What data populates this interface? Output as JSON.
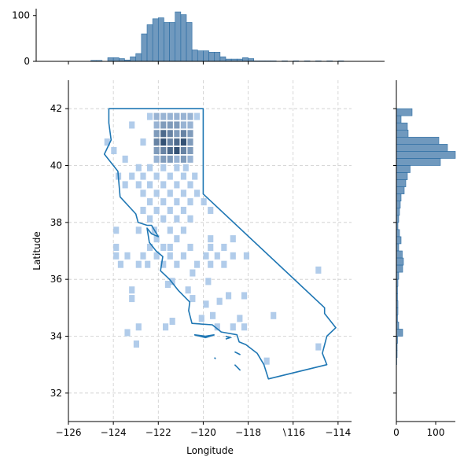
{
  "chart_data": {
    "type": "heatmap",
    "title": "",
    "xlabel": "Longitude",
    "ylabel": "Latitude",
    "xlim": [
      -126,
      -113.4
    ],
    "ylim": [
      31,
      43
    ],
    "x_ticks": [
      -126,
      -124,
      -122,
      -120,
      -118,
      -116,
      -114
    ],
    "y_ticks": [
      32,
      34,
      36,
      38,
      40,
      42
    ],
    "x_tick_labels": [
      "−126",
      "−124",
      "−122",
      "−120",
      "−118",
      "∖116",
      "−114"
    ],
    "y_tick_labels": [
      "32",
      "34",
      "36",
      "38",
      "40",
      "42"
    ],
    "grid": true,
    "colors": {
      "hist": "#4c7fae",
      "hist_edge": "#2c6da3",
      "outline": "#1f77b4",
      "cell_light": "#a9c6e8",
      "cell_dark": "#1e3f66",
      "grid": "#cccccc"
    },
    "top_marginal": {
      "type": "histogram",
      "ylim": [
        0,
        115
      ],
      "y_ticks": [
        0,
        100
      ],
      "y_tick_labels": [
        "0",
        "100"
      ],
      "bin_width": 0.25,
      "bins": [
        [
          -125.0,
          2
        ],
        [
          -124.75,
          2
        ],
        [
          -124.25,
          8
        ],
        [
          -124.0,
          8
        ],
        [
          -123.75,
          6
        ],
        [
          -123.5,
          3
        ],
        [
          -123.25,
          10
        ],
        [
          -123.0,
          17
        ],
        [
          -122.75,
          60
        ],
        [
          -122.5,
          80
        ],
        [
          -122.25,
          93
        ],
        [
          -122.0,
          95
        ],
        [
          -121.75,
          85
        ],
        [
          -121.5,
          85
        ],
        [
          -121.25,
          108
        ],
        [
          -121.0,
          102
        ],
        [
          -120.75,
          85
        ],
        [
          -120.5,
          25
        ],
        [
          -120.25,
          23
        ],
        [
          -120.0,
          23
        ],
        [
          -119.75,
          20
        ],
        [
          -119.5,
          20
        ],
        [
          -119.25,
          10
        ],
        [
          -119.0,
          5
        ],
        [
          -118.75,
          5
        ],
        [
          -118.5,
          5
        ],
        [
          -118.25,
          8
        ],
        [
          -118.0,
          6
        ],
        [
          -117.75,
          1
        ],
        [
          -117.5,
          1
        ],
        [
          -117.25,
          1
        ],
        [
          -117.0,
          1
        ],
        [
          -116.5,
          1
        ],
        [
          -116.0,
          1
        ],
        [
          -115.5,
          1
        ],
        [
          -115.0,
          1
        ],
        [
          -114.5,
          1
        ],
        [
          -114.0,
          1
        ]
      ]
    },
    "right_marginal": {
      "type": "histogram",
      "xlim": [
        0,
        150
      ],
      "x_ticks": [
        0,
        100
      ],
      "x_tick_labels": [
        "0",
        "100"
      ],
      "bin_width": 0.25,
      "bins": [
        [
          41.75,
          40
        ],
        [
          41.5,
          12
        ],
        [
          41.25,
          28
        ],
        [
          41.0,
          30
        ],
        [
          40.75,
          108
        ],
        [
          40.5,
          130
        ],
        [
          40.25,
          150
        ],
        [
          40.0,
          112
        ],
        [
          39.75,
          35
        ],
        [
          39.5,
          28
        ],
        [
          39.25,
          24
        ],
        [
          39.0,
          20
        ],
        [
          38.75,
          12
        ],
        [
          38.5,
          10
        ],
        [
          38.25,
          8
        ],
        [
          38.0,
          6
        ],
        [
          37.75,
          4
        ],
        [
          37.5,
          8
        ],
        [
          37.25,
          12
        ],
        [
          37.0,
          6
        ],
        [
          36.75,
          15
        ],
        [
          36.5,
          18
        ],
        [
          36.25,
          16
        ],
        [
          36.0,
          6
        ],
        [
          35.75,
          4
        ],
        [
          35.5,
          3
        ],
        [
          35.25,
          3
        ],
        [
          35.0,
          4
        ],
        [
          34.75,
          4
        ],
        [
          34.5,
          3
        ],
        [
          34.25,
          6
        ],
        [
          34.0,
          16
        ],
        [
          33.75,
          3
        ],
        [
          33.5,
          2
        ],
        [
          33.25,
          2
        ],
        [
          33.0,
          1
        ]
      ]
    },
    "heatmap_cells": [
      [
        -122.5,
        41.6,
        1
      ],
      [
        -122.2,
        41.6,
        2
      ],
      [
        -121.9,
        41.6,
        2
      ],
      [
        -121.6,
        41.6,
        2
      ],
      [
        -121.3,
        41.6,
        2
      ],
      [
        -121.0,
        41.6,
        2
      ],
      [
        -120.7,
        41.6,
        2
      ],
      [
        -120.4,
        41.6,
        1
      ],
      [
        -122.2,
        41.3,
        2
      ],
      [
        -121.9,
        41.3,
        3
      ],
      [
        -121.6,
        41.3,
        3
      ],
      [
        -121.3,
        41.3,
        3
      ],
      [
        -121.0,
        41.3,
        2
      ],
      [
        -120.7,
        41.3,
        2
      ],
      [
        -122.2,
        41.0,
        3
      ],
      [
        -121.9,
        41.0,
        5
      ],
      [
        -121.6,
        41.0,
        4
      ],
      [
        -121.3,
        41.0,
        3
      ],
      [
        -121.0,
        41.0,
        4
      ],
      [
        -120.7,
        41.0,
        3
      ],
      [
        -122.2,
        40.7,
        4
      ],
      [
        -121.9,
        40.7,
        6
      ],
      [
        -121.6,
        40.7,
        4
      ],
      [
        -121.3,
        40.7,
        5
      ],
      [
        -121.0,
        40.7,
        6
      ],
      [
        -120.7,
        40.7,
        3
      ],
      [
        -122.2,
        40.4,
        3
      ],
      [
        -121.9,
        40.4,
        4
      ],
      [
        -121.6,
        40.4,
        5
      ],
      [
        -121.3,
        40.4,
        6
      ],
      [
        -121.0,
        40.4,
        4
      ],
      [
        -120.7,
        40.4,
        3
      ],
      [
        -122.2,
        40.1,
        2
      ],
      [
        -121.9,
        40.1,
        3
      ],
      [
        -121.6,
        40.1,
        3
      ],
      [
        -121.3,
        40.1,
        2
      ],
      [
        -121.0,
        40.1,
        3
      ],
      [
        -120.7,
        40.1,
        2
      ],
      [
        -124.4,
        40.7,
        1
      ],
      [
        -123.3,
        41.3,
        1
      ],
      [
        -122.8,
        40.7,
        1
      ],
      [
        -123.6,
        40.1,
        1
      ],
      [
        -124.1,
        40.4,
        1
      ],
      [
        -123.0,
        39.8,
        1
      ],
      [
        -122.5,
        39.8,
        1
      ],
      [
        -121.9,
        39.8,
        1
      ],
      [
        -121.3,
        39.8,
        1
      ],
      [
        -120.9,
        39.8,
        1
      ],
      [
        -123.9,
        39.5,
        1
      ],
      [
        -123.3,
        39.5,
        1
      ],
      [
        -122.8,
        39.5,
        1
      ],
      [
        -122.2,
        39.5,
        1
      ],
      [
        -121.6,
        39.5,
        1
      ],
      [
        -121.0,
        39.5,
        1
      ],
      [
        -120.5,
        39.5,
        1
      ],
      [
        -123.6,
        39.2,
        1
      ],
      [
        -123.0,
        39.2,
        1
      ],
      [
        -122.5,
        39.2,
        1
      ],
      [
        -121.9,
        39.2,
        1
      ],
      [
        -121.3,
        39.2,
        1
      ],
      [
        -120.7,
        39.2,
        1
      ],
      [
        -122.8,
        38.9,
        1
      ],
      [
        -122.2,
        38.9,
        1
      ],
      [
        -121.6,
        38.9,
        1
      ],
      [
        -121.0,
        38.9,
        1
      ],
      [
        -120.4,
        38.9,
        1
      ],
      [
        -122.5,
        38.6,
        1
      ],
      [
        -121.9,
        38.6,
        1
      ],
      [
        -121.3,
        38.6,
        1
      ],
      [
        -120.7,
        38.6,
        1
      ],
      [
        -120.1,
        38.6,
        1
      ],
      [
        -122.8,
        38.3,
        1
      ],
      [
        -122.2,
        38.3,
        1
      ],
      [
        -121.6,
        38.3,
        1
      ],
      [
        -121.0,
        38.3,
        1
      ],
      [
        -119.8,
        38.3,
        1
      ],
      [
        -122.5,
        38.0,
        1
      ],
      [
        -121.9,
        38.0,
        1
      ],
      [
        -121.3,
        38.0,
        1
      ],
      [
        -120.7,
        38.0,
        1
      ],
      [
        -124.0,
        37.6,
        1
      ],
      [
        -123.0,
        37.6,
        1
      ],
      [
        -122.3,
        37.6,
        1
      ],
      [
        -121.6,
        37.6,
        1
      ],
      [
        -121.0,
        37.6,
        1
      ],
      [
        -122.2,
        37.3,
        1
      ],
      [
        -121.3,
        37.3,
        1
      ],
      [
        -119.8,
        37.3,
        1
      ],
      [
        -118.8,
        37.3,
        1
      ],
      [
        -124.0,
        37.0,
        1
      ],
      [
        -122.5,
        37.0,
        1
      ],
      [
        -121.9,
        37.0,
        1
      ],
      [
        -121.6,
        37.0,
        1
      ],
      [
        -120.7,
        37.0,
        1
      ],
      [
        -119.8,
        37.0,
        1
      ],
      [
        -119.2,
        37.0,
        1
      ],
      [
        -124.0,
        36.7,
        1
      ],
      [
        -123.5,
        36.7,
        1
      ],
      [
        -122.8,
        36.7,
        1
      ],
      [
        -122.2,
        36.7,
        1
      ],
      [
        -121.6,
        36.7,
        1
      ],
      [
        -121.0,
        36.7,
        1
      ],
      [
        -120.0,
        36.7,
        1
      ],
      [
        -119.5,
        36.7,
        1
      ],
      [
        -118.8,
        36.7,
        1
      ],
      [
        -118.2,
        36.7,
        1
      ],
      [
        -123.8,
        36.4,
        1
      ],
      [
        -123.0,
        36.4,
        1
      ],
      [
        -122.6,
        36.4,
        1
      ],
      [
        -121.9,
        36.4,
        1
      ],
      [
        -121.3,
        36.4,
        1
      ],
      [
        -120.4,
        36.4,
        1
      ],
      [
        -119.8,
        36.4,
        1
      ],
      [
        -119.2,
        36.4,
        1
      ],
      [
        -120.6,
        36.1,
        1
      ],
      [
        -119.9,
        35.8,
        1
      ],
      [
        -121.5,
        35.8,
        1
      ],
      [
        -123.3,
        35.5,
        1
      ],
      [
        -120.8,
        35.5,
        1
      ],
      [
        -121.7,
        35.7,
        1
      ],
      [
        -123.3,
        35.2,
        1
      ],
      [
        -120.6,
        35.2,
        1
      ],
      [
        -119.0,
        35.3,
        1
      ],
      [
        -118.3,
        35.3,
        1
      ],
      [
        -120.0,
        35.0,
        1
      ],
      [
        -119.4,
        35.1,
        1
      ],
      [
        -123.0,
        34.2,
        1
      ],
      [
        -121.8,
        34.2,
        1
      ],
      [
        -119.5,
        34.2,
        1
      ],
      [
        -118.8,
        34.2,
        1
      ],
      [
        -118.3,
        34.2,
        1
      ],
      [
        -120.2,
        34.5,
        1
      ],
      [
        -118.5,
        34.5,
        1
      ],
      [
        -117.0,
        34.6,
        1
      ],
      [
        -123.5,
        34.0,
        1
      ],
      [
        -123.1,
        33.6,
        1
      ],
      [
        -115.0,
        36.2,
        1
      ],
      [
        -115.0,
        33.5,
        1
      ],
      [
        -117.3,
        33.0,
        1
      ],
      [
        -119.7,
        34.6,
        1
      ],
      [
        -121.5,
        34.4,
        1
      ]
    ]
  }
}
